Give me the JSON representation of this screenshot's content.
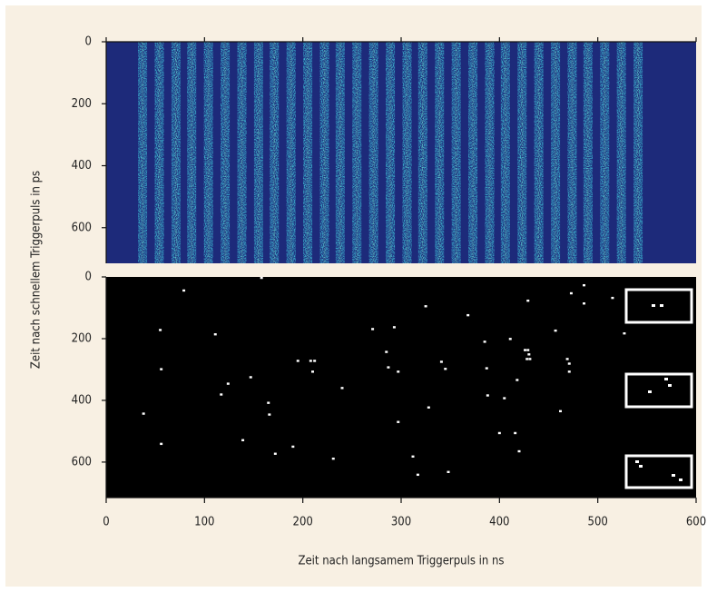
{
  "chart_data": [
    {
      "type": "stripes",
      "ylabel": "Zeit nach schnellem Triggerpuls in ps",
      "x": [
        37,
        54,
        71,
        87,
        104,
        121,
        138,
        155,
        171,
        188,
        205,
        222,
        238,
        255,
        272,
        289,
        306,
        322,
        339,
        356,
        373,
        390,
        406,
        423,
        440,
        457,
        474,
        490,
        507,
        524,
        541
      ],
      "xlim": [
        0,
        600
      ],
      "ylim": [
        0,
        715
      ],
      "yticks": [
        0,
        200,
        400,
        600
      ],
      "background": "#1d2a7a",
      "color": "#3fc8dc"
    },
    {
      "type": "scatter",
      "xlabel": "Zeit nach langsamem Triggerpuls in ns",
      "x": [
        79,
        158,
        55,
        111,
        56,
        147,
        124,
        117,
        38,
        165,
        166,
        139,
        56,
        190,
        172,
        195,
        208,
        212,
        210,
        240,
        231,
        271,
        293,
        285,
        287,
        297,
        325,
        341,
        345,
        328,
        297,
        312,
        317,
        348,
        368,
        385,
        387,
        388,
        411,
        405,
        400,
        416,
        420,
        418,
        429,
        430,
        431,
        428,
        426,
        429,
        457,
        462,
        469,
        471,
        471,
        473,
        486,
        486,
        515,
        527
      ],
      "y": [
        44,
        3,
        172,
        186,
        299,
        325,
        346,
        381,
        443,
        408,
        446,
        529,
        541,
        550,
        573,
        272,
        272,
        272,
        307,
        360,
        589,
        169,
        163,
        243,
        293,
        307,
        95,
        275,
        298,
        423,
        470,
        582,
        641,
        632,
        124,
        210,
        296,
        384,
        201,
        393,
        506,
        506,
        565,
        334,
        237,
        251,
        266,
        266,
        237,
        77,
        174,
        435,
        266,
        281,
        307,
        53,
        27,
        86,
        68,
        183
      ],
      "xlim": [
        0,
        600
      ],
      "ylim": [
        0,
        715
      ],
      "xticks": [
        0,
        100,
        200,
        300,
        400,
        500,
        600
      ],
      "yticks": [
        0,
        200,
        400,
        600
      ],
      "background": "#000000",
      "color": "#ffffff"
    }
  ]
}
